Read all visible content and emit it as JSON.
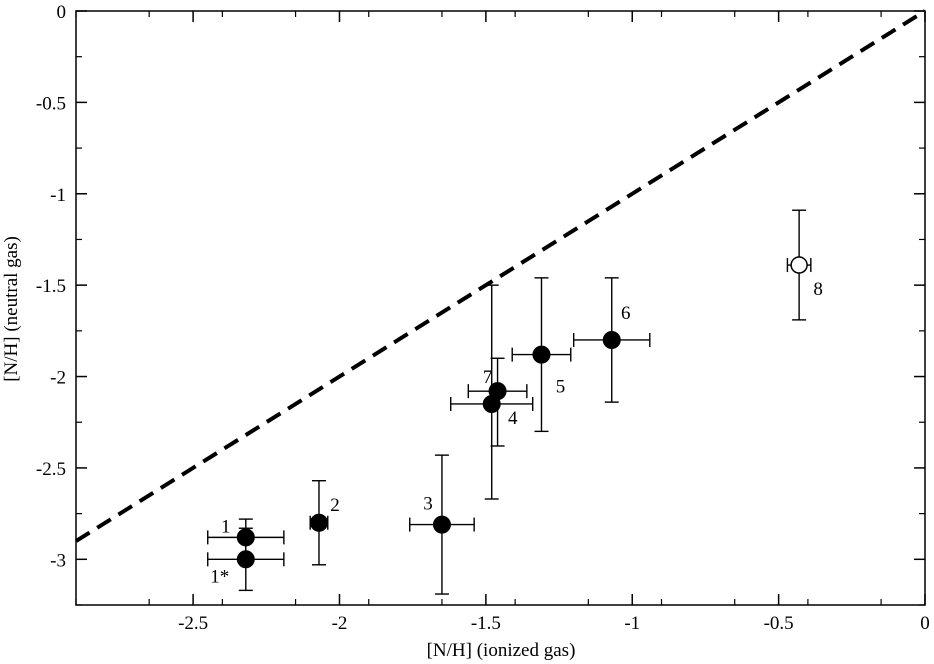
{
  "chart_data": {
    "type": "scatter",
    "xlabel": "[N/H] (ionized gas)",
    "ylabel": "[N/H] (neutral gas)",
    "xlim": [
      -2.9,
      0
    ],
    "ylim": [
      -3.25,
      0
    ],
    "x_ticks": [
      -2.5,
      -2,
      -1.5,
      -1,
      -0.5,
      0
    ],
    "x_tick_labels": [
      "-2.5",
      "-2",
      "-1.5",
      "-1",
      "-0.5",
      "0"
    ],
    "y_ticks": [
      0,
      -0.5,
      -1,
      -1.5,
      -2,
      -2.5,
      -3
    ],
    "y_tick_labels": [
      "0",
      "-0.5",
      "-1",
      "-1.5",
      "-2",
      "-2.5",
      "-3"
    ],
    "grid": false,
    "reference_line": {
      "style": "dashed",
      "x": [
        -2.9,
        0
      ],
      "y": [
        -2.9,
        0
      ]
    },
    "points": [
      {
        "label": "1",
        "x": -2.32,
        "y": -2.88,
        "xerr": 0.13,
        "yerr_low": 0.1,
        "yerr_high": 0.1,
        "filled": true
      },
      {
        "label": "1*",
        "x": -2.32,
        "y": -3.0,
        "xerr": 0.13,
        "yerr_low": 0.17,
        "yerr_high": 0.17,
        "filled": true
      },
      {
        "label": "2",
        "x": -2.07,
        "y": -2.8,
        "xerr": 0.03,
        "yerr_low": 0.23,
        "yerr_high": 0.23,
        "filled": true
      },
      {
        "label": "3",
        "x": -1.65,
        "y": -2.81,
        "xerr": 0.11,
        "yerr_low": 0.38,
        "yerr_high": 0.38,
        "filled": true
      },
      {
        "label": "4",
        "x": -1.48,
        "y": -2.15,
        "xerr": 0.14,
        "yerr_low": 0.52,
        "yerr_high": 0.65,
        "filled": true
      },
      {
        "label": "7",
        "x": -1.46,
        "y": -2.08,
        "xerr": 0.1,
        "yerr_low": 0.3,
        "yerr_high": 0.18,
        "filled": true
      },
      {
        "label": "5",
        "x": -1.31,
        "y": -1.88,
        "xerr": 0.1,
        "yerr_low": 0.42,
        "yerr_high": 0.42,
        "filled": true
      },
      {
        "label": "6",
        "x": -1.07,
        "y": -1.8,
        "xerr": 0.13,
        "yerr_low": 0.34,
        "yerr_high": 0.34,
        "filled": true
      },
      {
        "label": "8",
        "x": -0.43,
        "y": -1.39,
        "xerr": 0.04,
        "yerr_low": 0.3,
        "yerr_high": 0.3,
        "filled": false
      }
    ]
  }
}
